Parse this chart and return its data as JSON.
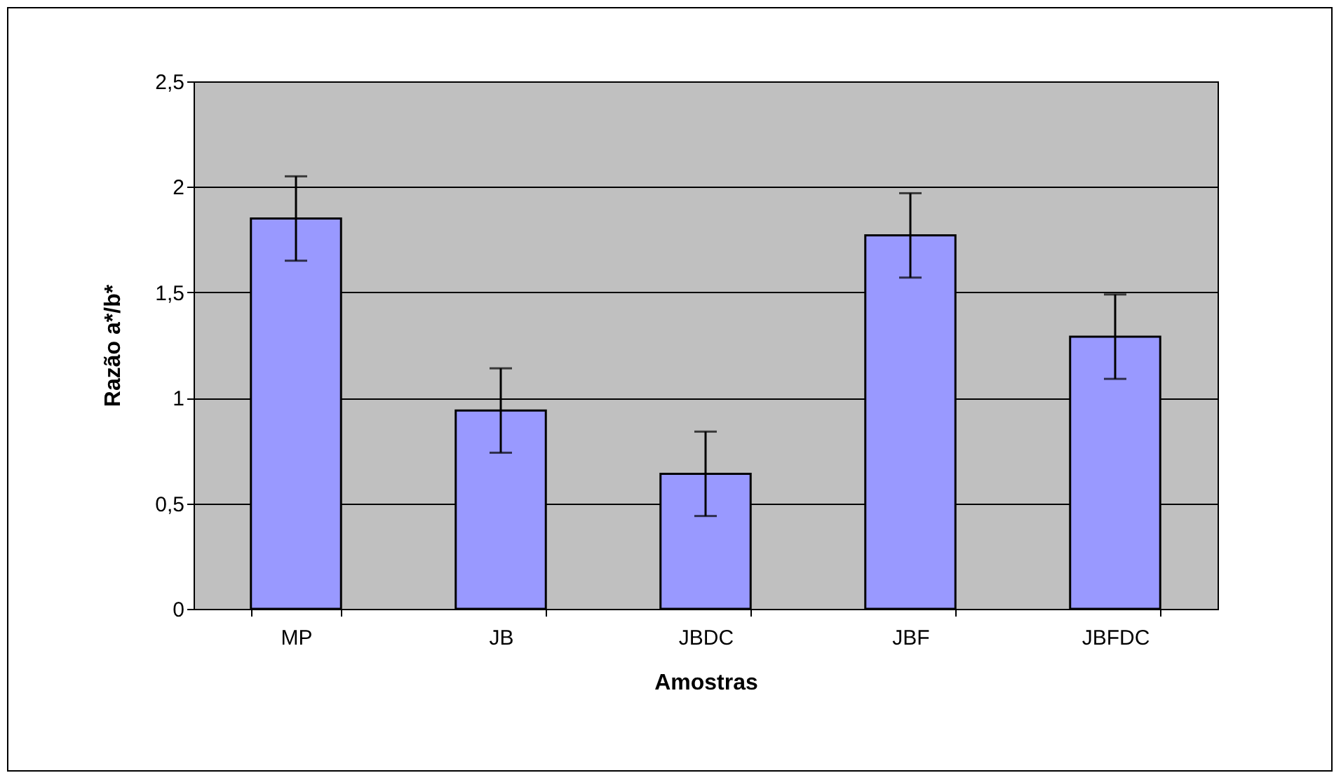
{
  "chart_data": {
    "type": "bar",
    "xlabel": "Amostras",
    "ylabel": "Razão a*/b*",
    "categories": [
      "MP",
      "JB",
      "JBDC",
      "JBF",
      "JBFDC"
    ],
    "values": [
      1.85,
      0.94,
      0.64,
      1.77,
      1.29
    ],
    "errors": [
      0.2,
      0.2,
      0.2,
      0.2,
      0.2
    ],
    "color": "#9999ff",
    "ylim": [
      0,
      2.5
    ],
    "yticks": [
      0,
      {
        "value": 0.5,
        "label": "0,5"
      },
      1,
      {
        "value": 1.5,
        "label": "1,5"
      },
      2,
      {
        "value": 2.5,
        "label": "2,5"
      }
    ],
    "grid": "y"
  }
}
